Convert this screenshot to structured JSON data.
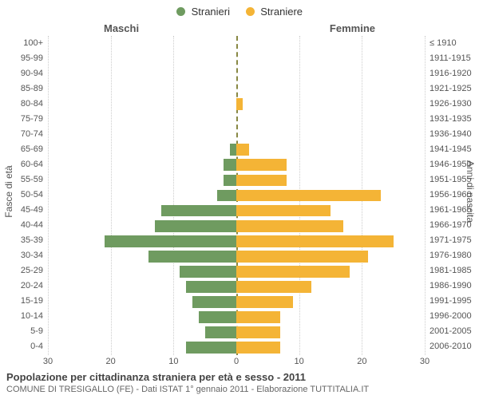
{
  "legend": {
    "items": [
      {
        "label": "Stranieri",
        "color": "#6f9b60"
      },
      {
        "label": "Straniere",
        "color": "#f4b436"
      }
    ]
  },
  "headers": {
    "left": "Maschi",
    "right": "Femmine"
  },
  "y_axes": {
    "left_title": "Fasce di età",
    "right_title": "Anni di nascita"
  },
  "chart": {
    "type": "population-pyramid",
    "xmax": 30,
    "x_ticks": [
      30,
      20,
      10,
      0,
      10,
      20,
      30
    ],
    "grid_color": "#cccccc",
    "center_line_color": "#888844",
    "bar_color_left": "#6f9b60",
    "bar_color_right": "#f4b436",
    "background_color": "#ffffff",
    "tick_fontsize": 11,
    "bar_height_ratio": 0.78,
    "rows": [
      {
        "age": "100+",
        "birth": "≤ 1910",
        "m": 0,
        "f": 0
      },
      {
        "age": "95-99",
        "birth": "1911-1915",
        "m": 0,
        "f": 0
      },
      {
        "age": "90-94",
        "birth": "1916-1920",
        "m": 0,
        "f": 0
      },
      {
        "age": "85-89",
        "birth": "1921-1925",
        "m": 0,
        "f": 0
      },
      {
        "age": "80-84",
        "birth": "1926-1930",
        "m": 0,
        "f": 1
      },
      {
        "age": "75-79",
        "birth": "1931-1935",
        "m": 0,
        "f": 0
      },
      {
        "age": "70-74",
        "birth": "1936-1940",
        "m": 0,
        "f": 0
      },
      {
        "age": "65-69",
        "birth": "1941-1945",
        "m": 1,
        "f": 2
      },
      {
        "age": "60-64",
        "birth": "1946-1950",
        "m": 2,
        "f": 8
      },
      {
        "age": "55-59",
        "birth": "1951-1955",
        "m": 2,
        "f": 8
      },
      {
        "age": "50-54",
        "birth": "1956-1960",
        "m": 3,
        "f": 23
      },
      {
        "age": "45-49",
        "birth": "1961-1965",
        "m": 12,
        "f": 15
      },
      {
        "age": "40-44",
        "birth": "1966-1970",
        "m": 13,
        "f": 17
      },
      {
        "age": "35-39",
        "birth": "1971-1975",
        "m": 21,
        "f": 25
      },
      {
        "age": "30-34",
        "birth": "1976-1980",
        "m": 14,
        "f": 21
      },
      {
        "age": "25-29",
        "birth": "1981-1985",
        "m": 9,
        "f": 18
      },
      {
        "age": "20-24",
        "birth": "1986-1990",
        "m": 8,
        "f": 12
      },
      {
        "age": "15-19",
        "birth": "1991-1995",
        "m": 7,
        "f": 9
      },
      {
        "age": "10-14",
        "birth": "1996-2000",
        "m": 6,
        "f": 7
      },
      {
        "age": "5-9",
        "birth": "2001-2005",
        "m": 5,
        "f": 7
      },
      {
        "age": "0-4",
        "birth": "2006-2010",
        "m": 8,
        "f": 7
      }
    ]
  },
  "caption": {
    "title": "Popolazione per cittadinanza straniera per età e sesso - 2011",
    "sub": "COMUNE DI TRESIGALLO (FE) - Dati ISTAT 1° gennaio 2011 - Elaborazione TUTTITALIA.IT"
  }
}
